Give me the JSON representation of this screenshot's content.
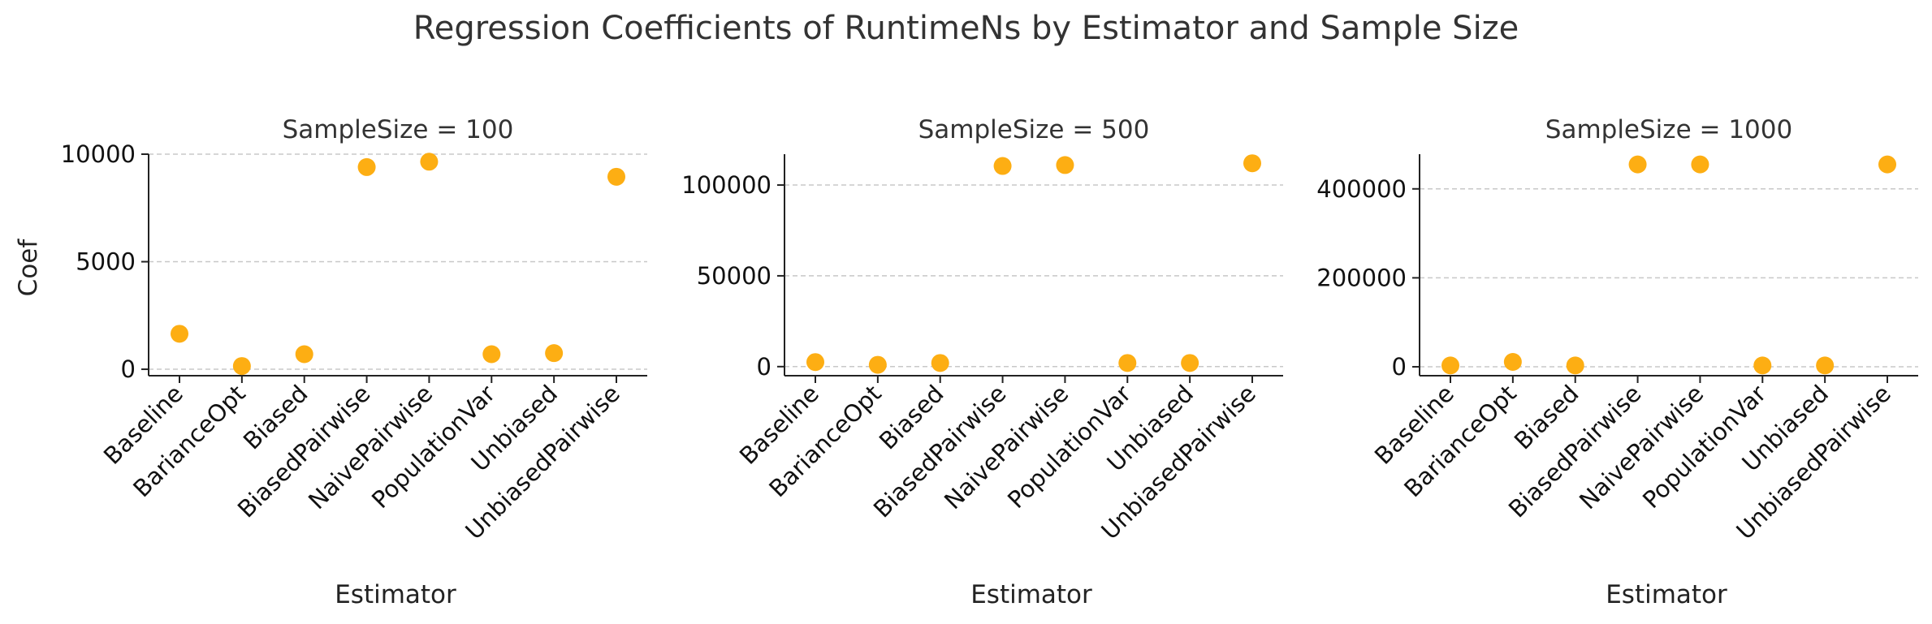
{
  "title": "Regression Coefficients of RuntimeNs by Estimator and Sample Size",
  "colors": {
    "point": "#FDAE13",
    "axis": "#222222",
    "grid": "#C8C8C8",
    "text": "#333333"
  },
  "chart_data": [
    {
      "type": "scatter",
      "title": "SampleSize = 100",
      "xlabel": "Estimator",
      "ylabel": "Coef",
      "categories": [
        "Baseline",
        "BarianceOpt",
        "Biased",
        "BiasedPairwise",
        "NaivePairwise",
        "PopulationVar",
        "Unbiased",
        "UnbiasedPairwise"
      ],
      "values": [
        1650,
        150,
        700,
        9400,
        9650,
        700,
        750,
        8950
      ],
      "yticks": [
        0,
        5000,
        10000
      ],
      "ytick_labels": [
        "0",
        "5000",
        "10000"
      ],
      "ylim": [
        -300,
        10000
      ],
      "grid": true
    },
    {
      "type": "scatter",
      "title": "SampleSize = 500",
      "xlabel": "Estimator",
      "ylabel": "",
      "categories": [
        "Baseline",
        "BarianceOpt",
        "Biased",
        "BiasedPairwise",
        "NaivePairwise",
        "PopulationVar",
        "Unbiased",
        "UnbiasedPairwise"
      ],
      "values": [
        2500,
        1000,
        2000,
        110500,
        111000,
        2000,
        2000,
        112000
      ],
      "yticks": [
        0,
        50000,
        100000
      ],
      "ytick_labels": [
        "0",
        "50000",
        "100000"
      ],
      "ylim": [
        -5000,
        117000
      ],
      "grid": true
    },
    {
      "type": "scatter",
      "title": "SampleSize = 1000",
      "xlabel": "Estimator",
      "ylabel": "",
      "categories": [
        "Baseline",
        "BarianceOpt",
        "Biased",
        "BiasedPairwise",
        "NaivePairwise",
        "PopulationVar",
        "Unbiased",
        "UnbiasedPairwise"
      ],
      "values": [
        3000,
        11000,
        3000,
        455000,
        455000,
        3000,
        3000,
        455000
      ],
      "yticks": [
        0,
        200000,
        400000
      ],
      "ytick_labels": [
        "0",
        "200000",
        "400000"
      ],
      "ylim": [
        -20000,
        478000
      ],
      "grid": true
    }
  ]
}
